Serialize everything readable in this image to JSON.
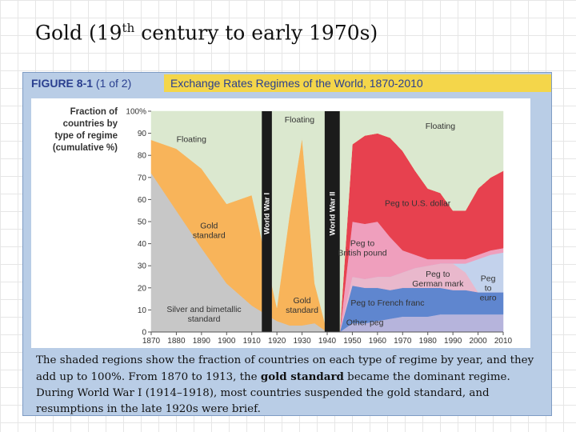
{
  "slide": {
    "title_before": "Gold (19",
    "title_sup": "th",
    "title_after": " century to early 1970s)"
  },
  "figure": {
    "label": "FIGURE 8-1",
    "label_suffix": "(1 of 2)",
    "title": "Exchange Rates Regimes of the World, 1870-2010"
  },
  "caption": {
    "part1": "The shaded regions show the fraction of countries on each type of regime by year, and they add up to 100%. From 1870 to 1913, the ",
    "bold": "gold standard",
    "part2": " became the dominant regime. During World War I (1914–1918), most countries suspended the gold standard, and resumptions in the late 1920s were brief."
  },
  "chart_data": {
    "type": "area",
    "stacked": true,
    "ylabel": "Fraction of countries by type of regime (cumulative %)",
    "ylim": [
      0,
      100
    ],
    "xlim": [
      1870,
      2010
    ],
    "yticks": [
      "0",
      "10",
      "20",
      "30",
      "40",
      "50",
      "60",
      "70",
      "80",
      "90",
      "100%"
    ],
    "xticks": [
      "1870",
      "1880",
      "1890",
      "1900",
      "1910",
      "1920",
      "1930",
      "1940",
      "1950",
      "1960",
      "1970",
      "1980",
      "1990",
      "2000",
      "2010"
    ],
    "x": [
      1870,
      1880,
      1890,
      1900,
      1910,
      1920,
      1925,
      1930,
      1935,
      1940,
      1945,
      1950,
      1955,
      1960,
      1965,
      1970,
      1975,
      1980,
      1985,
      1990,
      1995,
      2000,
      2005,
      2010
    ],
    "series": [
      {
        "name": "Other peg",
        "color": "#b6b4dc",
        "values": [
          0,
          0,
          0,
          0,
          0,
          0,
          0,
          0,
          0,
          0,
          0,
          4,
          4,
          5,
          6,
          7,
          7,
          7,
          8,
          8,
          8,
          8,
          8,
          8
        ]
      },
      {
        "name": "Peg to French franc",
        "color": "#5f86cf",
        "values": [
          0,
          0,
          0,
          0,
          0,
          0,
          0,
          0,
          0,
          0,
          0,
          17,
          16,
          15,
          13,
          13,
          13,
          13,
          12,
          11,
          11,
          10,
          10,
          10
        ]
      },
      {
        "name": "Peg to German mark",
        "color": "#e9b8cc",
        "values": [
          0,
          0,
          0,
          0,
          0,
          0,
          0,
          0,
          0,
          0,
          0,
          4,
          4,
          5,
          6,
          7,
          9,
          10,
          11,
          12,
          8,
          0,
          0,
          0
        ]
      },
      {
        "name": "Peg to euro",
        "color": "#c3d2ec",
        "values": [
          0,
          0,
          0,
          0,
          0,
          0,
          0,
          0,
          0,
          0,
          0,
          0,
          0,
          0,
          0,
          0,
          0,
          0,
          0,
          0,
          4,
          15,
          17,
          18
        ]
      },
      {
        "name": "Peg to British pound",
        "color": "#ef9fbd",
        "values": [
          0,
          0,
          0,
          0,
          0,
          0,
          0,
          0,
          0,
          0,
          0,
          25,
          25,
          25,
          18,
          10,
          6,
          3,
          2,
          2,
          2,
          2,
          2,
          2
        ]
      },
      {
        "name": "Peg to U.S. dollar",
        "color": "#e7414f",
        "values": [
          0,
          0,
          0,
          0,
          0,
          0,
          0,
          0,
          0,
          0,
          0,
          35,
          40,
          40,
          45,
          45,
          38,
          32,
          30,
          22,
          22,
          30,
          33,
          35
        ]
      },
      {
        "name": "Silver and bimetallic standard",
        "color": "#c7c7c7",
        "values": [
          72,
          55,
          38,
          22,
          12,
          5,
          3,
          3,
          4,
          0,
          0,
          0,
          0,
          0,
          0,
          0,
          0,
          0,
          0,
          0,
          0,
          0,
          0,
          0
        ]
      },
      {
        "name": "Gold standard",
        "color": "#f8b45a",
        "values": [
          15,
          28,
          36,
          36,
          50,
          6,
          50,
          85,
          18,
          0,
          0,
          0,
          0,
          0,
          0,
          0,
          0,
          0,
          0,
          0,
          0,
          0,
          0,
          0
        ]
      },
      {
        "name": "Floating",
        "color": "#dbe8cf",
        "values": [
          13,
          17,
          26,
          42,
          38,
          89,
          47,
          12,
          78,
          100,
          100,
          15,
          11,
          10,
          12,
          18,
          27,
          35,
          37,
          45,
          45,
          35,
          30,
          27
        ]
      }
    ],
    "bands": [
      {
        "label": "World War I",
        "from": 1914,
        "to": 1918
      },
      {
        "label": "World War II",
        "from": 1939,
        "to": 1945
      }
    ],
    "annotations": [
      {
        "text": "Floating",
        "x": 1886,
        "y": 86
      },
      {
        "text": "Floating",
        "x": 1929,
        "y": 95
      },
      {
        "text": "Floating",
        "x": 1985,
        "y": 92
      },
      {
        "text": "Gold\nstandard",
        "x": 1893,
        "y": 47
      },
      {
        "text": "Gold\nstandard",
        "x": 1930,
        "y": 13
      },
      {
        "text": "Silver and bimetallic\nstandard",
        "x": 1891,
        "y": 9
      },
      {
        "text": "Peg to U.S. dollar",
        "x": 1976,
        "y": 57
      },
      {
        "text": "Peg to\nBritish pound",
        "x": 1954,
        "y": 39
      },
      {
        "text": "Peg to\nGerman mark",
        "x": 1984,
        "y": 25
      },
      {
        "text": "Peg to French franc",
        "x": 1964,
        "y": 12
      },
      {
        "text": "Other peg",
        "x": 1955,
        "y": 3
      },
      {
        "text": "Peg\nto\neuro",
        "x": 2004,
        "y": 23
      }
    ]
  }
}
